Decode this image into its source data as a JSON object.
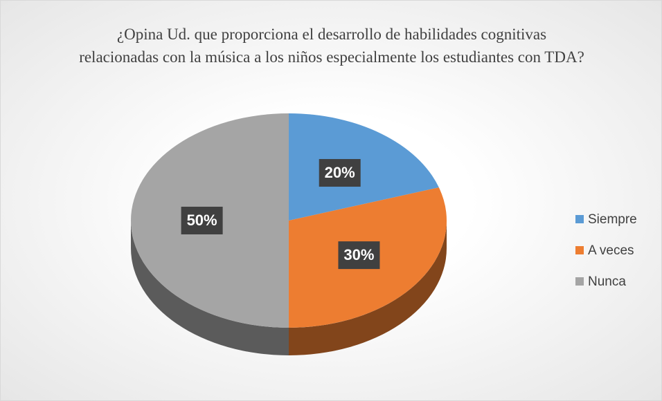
{
  "chart_data": {
    "type": "pie",
    "title": "¿Opina Ud. que proporciona el desarrollo de habilidades cognitivas relacionadas con la música a los niños especialmente los estudiantes con TDA?",
    "categories": [
      "Siempre",
      "A veces",
      "Nunca"
    ],
    "values": [
      20,
      30,
      50
    ],
    "value_labels": [
      "20%",
      "30%",
      "50%"
    ],
    "colors": [
      "#5b9bd5",
      "#ed7d31",
      "#a5a5a5"
    ],
    "legend": "right"
  }
}
